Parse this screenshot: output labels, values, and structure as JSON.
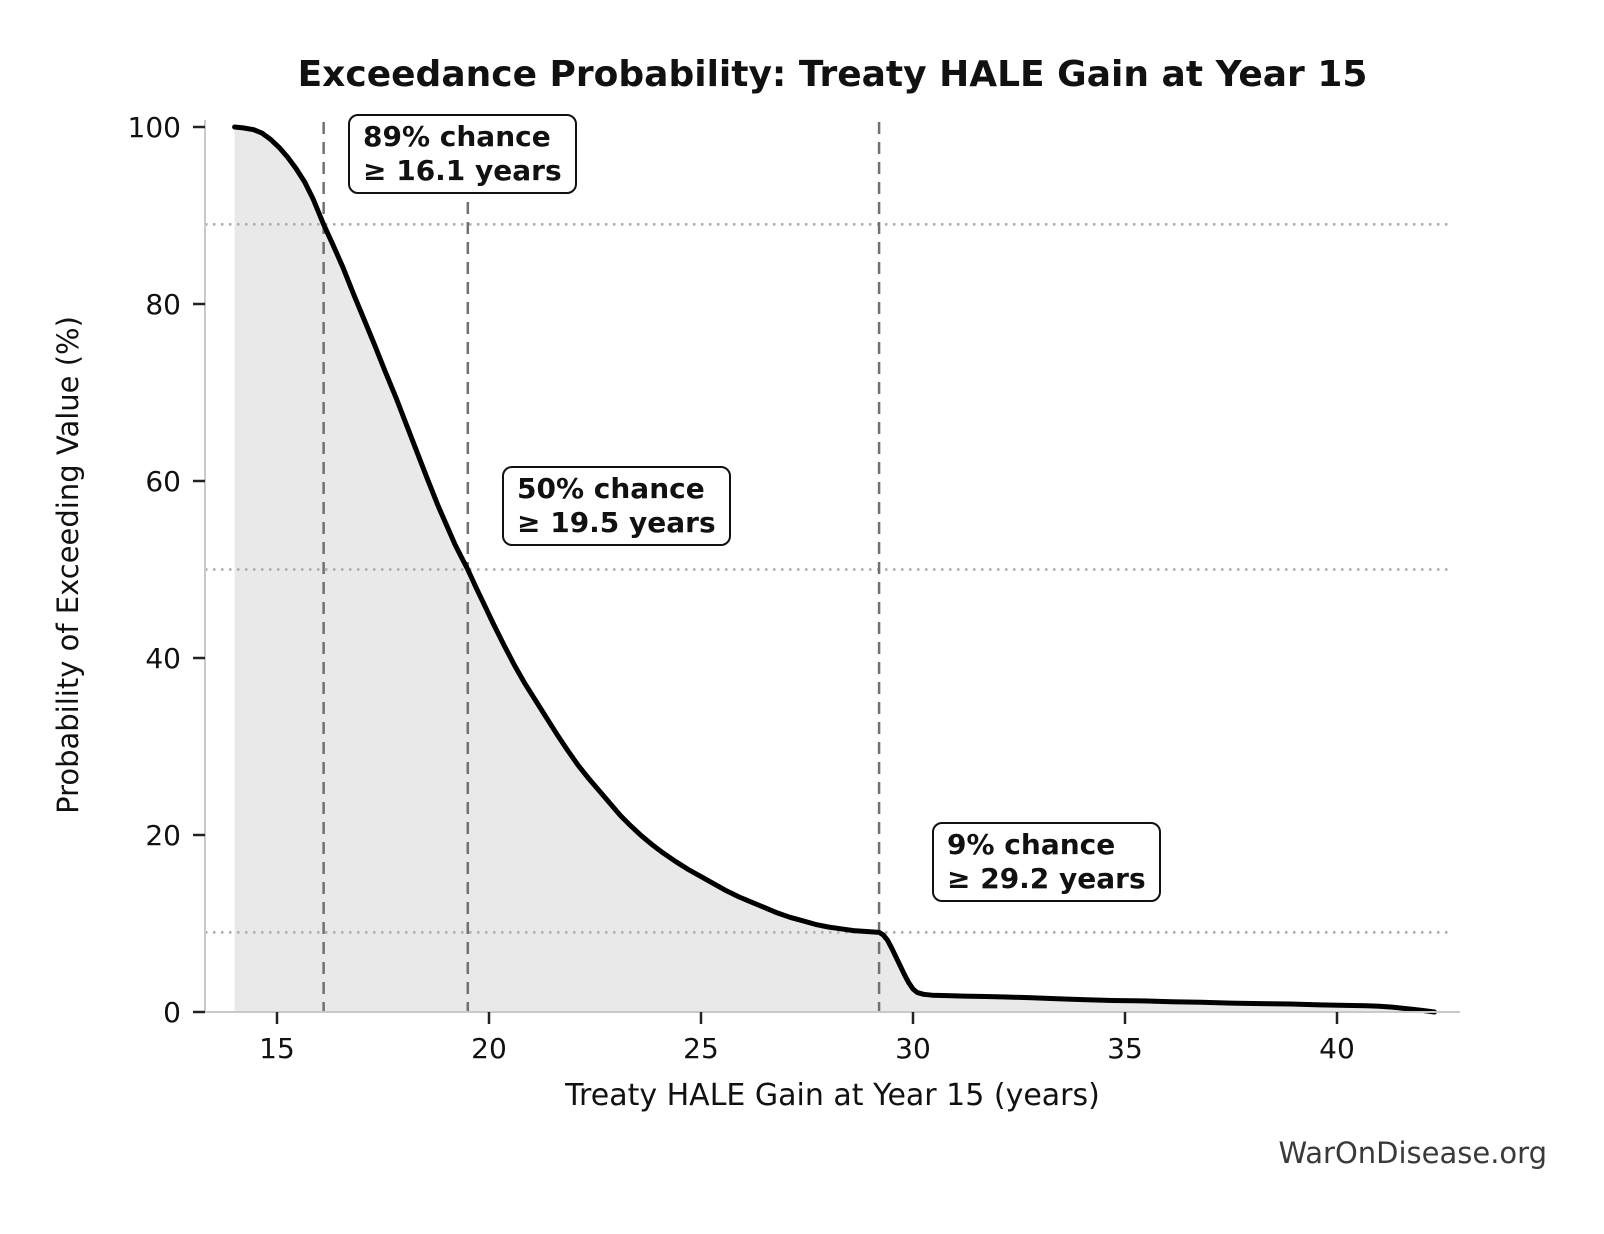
{
  "watermark": "WarOnDisease.org",
  "chart_data": {
    "type": "line",
    "title": "Exceedance Probability: Treaty HALE Gain at Year 15",
    "xlabel": "Treaty HALE Gain at Year 15 (years)",
    "ylabel": "Probability of Exceeding Value (%)",
    "xlim": [
      13.3,
      42.9
    ],
    "ylim": [
      0,
      100
    ],
    "xticks": [
      15,
      20,
      25,
      30,
      35,
      40
    ],
    "yticks": [
      0,
      20,
      40,
      60,
      80,
      100
    ],
    "grid": "dotted horizontal reference lines at 89%, 50%, 9%; dashed vertical reference lines at 16.1, 19.5, 29.2 years",
    "legend": "none",
    "line_color": "#000000",
    "fill_color": "#e9e9e9",
    "axis_color": "#c9c9c9",
    "dashed_line_color": "#717171",
    "dotted_line_color": "#ababab",
    "annotations": [
      {
        "prob_pct": 89,
        "value_years": 16.1,
        "line1": "89% chance",
        "line2": "≥ 16.1 years"
      },
      {
        "prob_pct": 50,
        "value_years": 19.5,
        "line1": "50% chance",
        "line2": "≥ 19.5 years"
      },
      {
        "prob_pct": 9,
        "value_years": 29.2,
        "line1": "9% chance",
        "line2": "≥ 29.2 years"
      }
    ],
    "series": [
      {
        "name": "Exceedance probability of Treaty HALE gain",
        "x": [
          14.0,
          14.2,
          14.45,
          14.65,
          14.85,
          15.05,
          15.25,
          15.45,
          15.65,
          15.85,
          16.1,
          16.3,
          16.55,
          16.8,
          17.05,
          17.3,
          17.55,
          17.8,
          18.05,
          18.3,
          18.55,
          18.8,
          19.0,
          19.2,
          19.35,
          19.5,
          19.7,
          19.9,
          20.1,
          20.35,
          20.6,
          20.85,
          21.1,
          21.35,
          21.6,
          21.85,
          22.1,
          22.35,
          22.6,
          22.85,
          23.1,
          23.35,
          23.6,
          23.85,
          24.1,
          24.4,
          24.7,
          25.0,
          25.3,
          25.6,
          25.9,
          26.2,
          26.5,
          26.8,
          27.1,
          27.4,
          27.7,
          28.0,
          28.3,
          28.6,
          28.9,
          29.2,
          29.3,
          29.4,
          29.5,
          29.6,
          29.7,
          29.8,
          29.9,
          30.0,
          30.1,
          30.25,
          30.45,
          30.8,
          31.2,
          31.7,
          32.2,
          32.8,
          33.4,
          34.0,
          34.7,
          35.4,
          36.1,
          36.8,
          37.5,
          38.2,
          38.9,
          39.6,
          40.2,
          40.7,
          41.0,
          41.3,
          41.6,
          41.9,
          42.1,
          42.3
        ],
        "y": [
          100.0,
          99.9,
          99.7,
          99.3,
          98.6,
          97.7,
          96.6,
          95.3,
          93.8,
          91.9,
          89.0,
          86.9,
          84.2,
          81.2,
          78.3,
          75.4,
          72.4,
          69.5,
          66.4,
          63.3,
          60.2,
          57.2,
          55.0,
          52.8,
          51.4,
          50.0,
          47.9,
          45.9,
          43.9,
          41.5,
          39.2,
          37.1,
          35.2,
          33.3,
          31.4,
          29.6,
          27.9,
          26.4,
          25.0,
          23.6,
          22.2,
          21.0,
          19.9,
          18.9,
          18.0,
          17.0,
          16.1,
          15.3,
          14.5,
          13.7,
          13.0,
          12.4,
          11.8,
          11.2,
          10.7,
          10.3,
          9.9,
          9.6,
          9.4,
          9.2,
          9.1,
          9.0,
          8.7,
          8.1,
          7.2,
          6.2,
          5.2,
          4.2,
          3.3,
          2.6,
          2.2,
          2.0,
          1.9,
          1.85,
          1.8,
          1.75,
          1.7,
          1.6,
          1.5,
          1.4,
          1.3,
          1.25,
          1.15,
          1.1,
          1.0,
          0.95,
          0.9,
          0.8,
          0.75,
          0.7,
          0.65,
          0.55,
          0.4,
          0.25,
          0.12,
          0.0
        ]
      }
    ]
  }
}
